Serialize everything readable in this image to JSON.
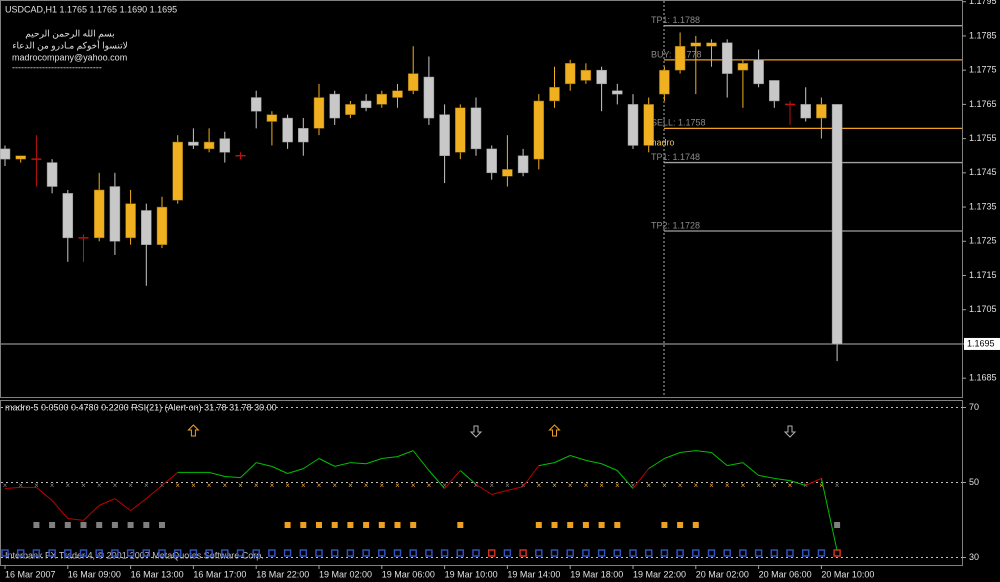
{
  "chart_data": [
    {
      "type": "candlestick",
      "title": "USDCAD,H1  1.1765 1.1765 1.1690 1.1695",
      "header_lines": [
        "بسم الله الرحمن الرحيم",
        "لاتنسوا أخوكم مـادرو من الدعاء",
        "madrocompany@yahoo.com",
        "------------------------------"
      ],
      "categories": [
        "16 Mar 2007",
        null,
        null,
        null,
        "16 Mar 09:00",
        null,
        null,
        null,
        "16 Mar 13:00",
        null,
        null,
        null,
        "16 Mar 17:00",
        null,
        null,
        null,
        "18 Mar 22:00",
        null,
        null,
        null,
        "19 Mar 02:00",
        null,
        null,
        null,
        "19 Mar 06:00",
        null,
        null,
        null,
        "19 Mar 10:00",
        null,
        null,
        null,
        "19 Mar 14:00",
        null,
        null,
        null,
        "19 Mar 18:00",
        null,
        null,
        null,
        "19 Mar 22:00",
        null,
        null,
        null,
        "20 Mar 02:00",
        null,
        null,
        null,
        "20 Mar 06:00",
        null,
        null,
        null,
        "20 Mar 10:00",
        null
      ],
      "open": [
        1.1752,
        1.1749,
        1.1749,
        1.1748,
        1.1739,
        1.1726,
        1.1726,
        1.1741,
        1.1726,
        1.1734,
        1.1724,
        1.1737,
        1.1754,
        1.1752,
        1.1755,
        1.175,
        1.1767,
        1.176,
        1.1761,
        1.1758,
        1.1758,
        1.1768,
        1.1762,
        1.1766,
        1.1765,
        1.1767,
        1.1769,
        1.1773,
        1.1762,
        1.1751,
        1.1764,
        1.1752,
        1.1744,
        1.175,
        1.1749,
        1.1766,
        1.1771,
        1.1772,
        1.1775,
        1.1769,
        1.1765,
        1.1753,
        1.1768,
        1.1775,
        1.1782,
        1.1782,
        1.1783,
        1.1775,
        1.1778,
        1.1772,
        1.1765,
        1.1765,
        1.1761,
        1.1765
      ],
      "high": [
        1.1753,
        1.175,
        1.1756,
        1.1749,
        1.174,
        1.1727,
        1.1745,
        1.1745,
        1.174,
        1.1736,
        1.1738,
        1.1756,
        1.1758,
        1.1758,
        1.1757,
        1.1751,
        1.1769,
        1.1763,
        1.1762,
        1.1761,
        1.1771,
        1.1769,
        1.1766,
        1.1768,
        1.1769,
        1.1771,
        1.1782,
        1.1779,
        1.1765,
        1.1765,
        1.1767,
        1.1753,
        1.1756,
        1.1752,
        1.1768,
        1.1776,
        1.1778,
        1.1777,
        1.1776,
        1.1771,
        1.1768,
        1.1767,
        1.1776,
        1.1786,
        1.1785,
        1.1784,
        1.1784,
        1.1778,
        1.1781,
        1.1772,
        1.1766,
        1.177,
        1.1767,
        1.1765
      ],
      "low": [
        1.1747,
        1.1748,
        1.1741,
        1.1739,
        1.1719,
        1.1719,
        1.1725,
        1.1721,
        1.1724,
        1.1712,
        1.1723,
        1.1736,
        1.1752,
        1.1751,
        1.1748,
        1.1749,
        1.1758,
        1.1753,
        1.1752,
        1.175,
        1.1756,
        1.1759,
        1.1761,
        1.1763,
        1.1764,
        1.1764,
        1.1768,
        1.1759,
        1.1742,
        1.1749,
        1.175,
        1.1743,
        1.1741,
        1.1744,
        1.1746,
        1.1764,
        1.1769,
        1.1771,
        1.1763,
        1.1765,
        1.1752,
        1.1751,
        1.1766,
        1.1774,
        1.1768,
        1.1776,
        1.1767,
        1.1764,
        1.177,
        1.1764,
        1.1759,
        1.176,
        1.1755,
        1.169
      ],
      "close": [
        1.1749,
        1.175,
        1.1749,
        1.1741,
        1.1726,
        1.1726,
        1.174,
        1.1725,
        1.1736,
        1.1724,
        1.1735,
        1.1754,
        1.1753,
        1.1754,
        1.1751,
        1.175,
        1.1763,
        1.1762,
        1.1754,
        1.1754,
        1.1767,
        1.1761,
        1.1765,
        1.1764,
        1.1768,
        1.1769,
        1.1774,
        1.1761,
        1.175,
        1.1764,
        1.1752,
        1.1745,
        1.1746,
        1.1745,
        1.1766,
        1.177,
        1.1777,
        1.1775,
        1.1771,
        1.1768,
        1.1753,
        1.1765,
        1.1775,
        1.1782,
        1.1783,
        1.1783,
        1.1774,
        1.1777,
        1.1771,
        1.1766,
        1.1765,
        1.1761,
        1.1765,
        1.1695
      ],
      "up_color": "#f0b020",
      "down_color": "#c8c8c8",
      "doji_color": "#c01010",
      "ylim": [
        1.16795,
        1.17955
      ],
      "yticks": [
        1.1685,
        1.1695,
        1.1705,
        1.1715,
        1.1725,
        1.1735,
        1.1745,
        1.1755,
        1.1765,
        1.1775,
        1.1785,
        1.1795
      ],
      "levels": [
        {
          "label": "TP1: 1.1788",
          "value": 1.1788,
          "color": "#a0a0a0"
        },
        {
          "label": "BUY: 1.1778",
          "value": 1.1778,
          "color": "#f0a020"
        },
        {
          "label": "SELL: 1.1758",
          "value": 1.1758,
          "color": "#f0a020"
        },
        {
          "label": "TP1: 1.1748",
          "value": 1.1748,
          "color": "#a0a0a0"
        },
        {
          "label": "TP2: 1.1728",
          "value": 1.1728,
          "color": "#a0a0a0"
        }
      ],
      "annotation": "madro",
      "current_price": 1.1695
    },
    {
      "type": "line",
      "title": "madro-5 0.0500 0.4780 0.2200  RSI(21) (Alert on) 31.78 31.78 30.00",
      "values": [
        48.4,
        48.7,
        48.7,
        45.2,
        40.4,
        39.9,
        43.9,
        45.7,
        42.5,
        45.7,
        49.2,
        52.7,
        52.7,
        52.7,
        51.6,
        51.3,
        55.3,
        54.3,
        52.4,
        53.7,
        56.4,
        54.3,
        55.3,
        55,
        56.4,
        56.9,
        58.5,
        53.2,
        48.4,
        53.2,
        49.5,
        46.8,
        47.9,
        48.9,
        54.5,
        55.3,
        57.2,
        55.9,
        55,
        53.2,
        48.4,
        53.7,
        56.4,
        58,
        58.5,
        58,
        54.5,
        55.3,
        51.9,
        51.1,
        50.5,
        49.2,
        51.1,
        31.78
      ],
      "above_color": "#00c000",
      "below_color": "#c00000",
      "ylim": [
        28,
        72
      ],
      "yticks": [
        30,
        50,
        70
      ],
      "up_color": "#f0a020",
      "down_color": "#808080",
      "row1_up": [
        18,
        19,
        20,
        21,
        22,
        23,
        24,
        25,
        26,
        29,
        34,
        35,
        36,
        37,
        38,
        39,
        42,
        43,
        44
      ],
      "row1_down": [
        2,
        3,
        4,
        5,
        6,
        7,
        8,
        9,
        10,
        53
      ],
      "row2_color": "#3050c0",
      "row2_alert_color": "#d03020",
      "row2_alerts": [
        31,
        33,
        53
      ],
      "arrows": [
        {
          "index": 12,
          "direction": "up"
        },
        {
          "index": 30,
          "direction": "down"
        },
        {
          "index": 35,
          "direction": "up"
        },
        {
          "index": 50,
          "direction": "down"
        }
      ],
      "footer": "Interbank FX Trader 4, © 2001-2007 MetaQuotes Software Corp."
    }
  ]
}
